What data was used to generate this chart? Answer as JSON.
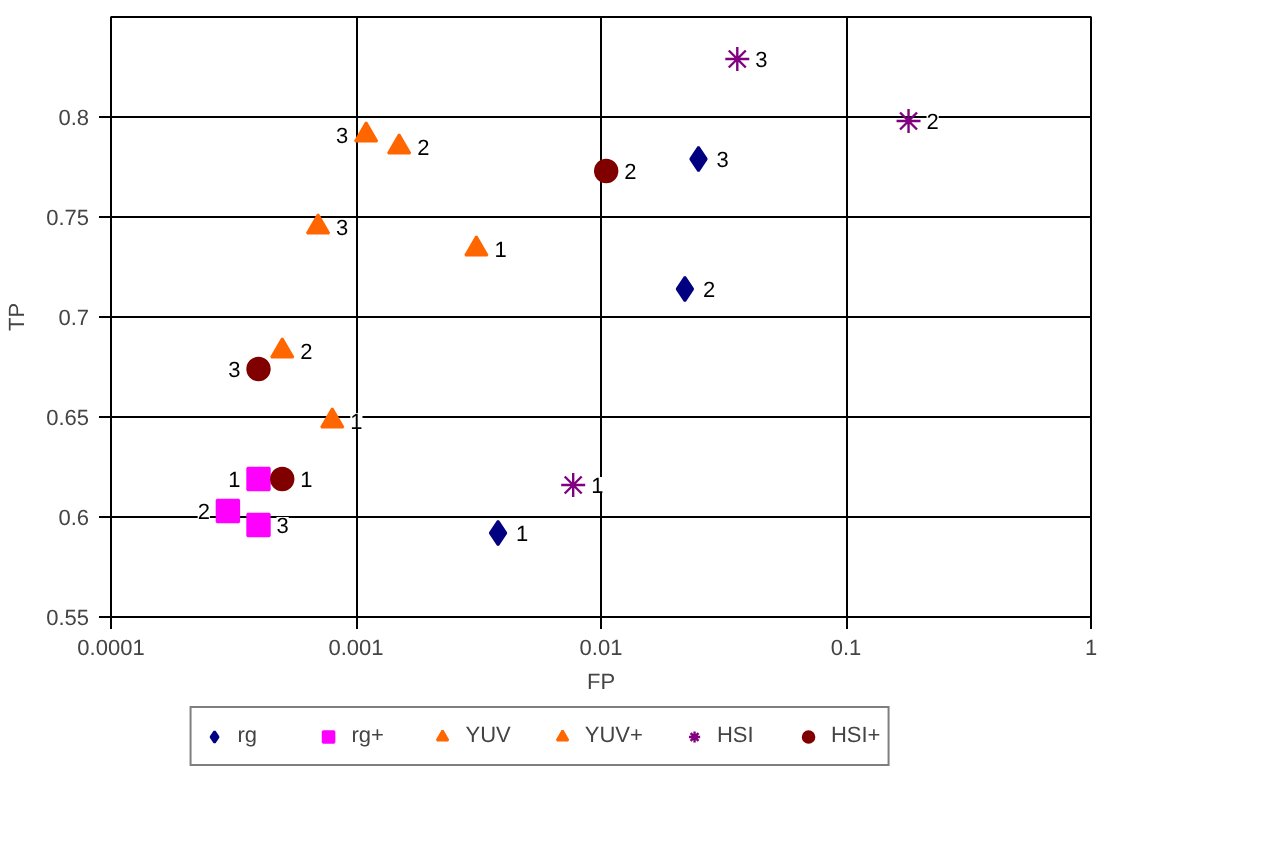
{
  "chart_data": {
    "type": "scatter",
    "xlabel": "FP",
    "ylabel": "TP",
    "log": "x",
    "grid": true,
    "legend": "bottom",
    "xlim": [
      0.0001,
      1
    ],
    "xticks": [
      0.0001,
      0.001,
      0.01,
      0.1,
      1
    ],
    "ylim": [
      0.55,
      0.85
    ],
    "yticks": [
      0.55,
      0.6,
      0.65,
      0.7,
      0.75,
      0.8
    ],
    "series": [
      {
        "name": "rg",
        "color": "#000080",
        "marker": "diamond",
        "x": [
          0.0038,
          0.022,
          0.025
        ],
        "values": [
          0.592,
          0.714,
          0.779
        ]
      },
      {
        "name": "rg+",
        "color": "#ff00ff",
        "marker": "square",
        "x": [
          0.0004,
          0.0003,
          0.0004
        ],
        "values": [
          0.619,
          0.603,
          0.596
        ]
      },
      {
        "name": "YUV",
        "color": "#ff6600",
        "marker": "triangle",
        "x": [
          0.0031,
          0.0015,
          0.0011
        ],
        "values": [
          0.734,
          0.785,
          0.791
        ]
      },
      {
        "name": "YUV+",
        "color": "#ff6600",
        "marker": "triangle",
        "x": [
          0.0008,
          0.0005,
          0.0007
        ],
        "values": [
          0.648,
          0.683,
          0.745
        ]
      },
      {
        "name": "HSI",
        "color": "#800080",
        "marker": "cross",
        "x": [
          0.0077,
          0.18,
          0.036
        ],
        "values": [
          0.616,
          0.798,
          0.829
        ]
      },
      {
        "name": "HSI+",
        "color": "#800000",
        "marker": "circle",
        "x": [
          0.0005,
          0.0105,
          0.0004
        ],
        "values": [
          0.619,
          0.773,
          0.674
        ]
      }
    ],
    "annotations": [
      {
        "text": "1",
        "x": 0.0038,
        "y": 0.592
      },
      {
        "text": "2",
        "x": 0.022,
        "y": 0.714
      },
      {
        "text": "3",
        "x": 0.025,
        "y": 0.779
      },
      {
        "text": "1",
        "x": 0.0004,
        "y": 0.619
      },
      {
        "text": "2",
        "x": 0.0003,
        "y": 0.603
      },
      {
        "text": "3",
        "x": 0.0004,
        "y": 0.596
      },
      {
        "text": "1",
        "x": 0.0031,
        "y": 0.734
      },
      {
        "text": "2",
        "x": 0.0015,
        "y": 0.785
      },
      {
        "text": "3",
        "x": 0.0011,
        "y": 0.791
      },
      {
        "text": "1",
        "x": 0.0008,
        "y": 0.648
      },
      {
        "text": "2",
        "x": 0.0005,
        "y": 0.683
      },
      {
        "text": "3",
        "x": 0.0007,
        "y": 0.745
      },
      {
        "text": "1",
        "x": 0.0077,
        "y": 0.616
      },
      {
        "text": "2",
        "x": 0.18,
        "y": 0.798
      },
      {
        "text": "3",
        "x": 0.036,
        "y": 0.829
      },
      {
        "text": "1",
        "x": 0.0005,
        "y": 0.619
      },
      {
        "text": "2",
        "x": 0.0105,
        "y": 0.773
      },
      {
        "text": "3",
        "x": 0.0004,
        "y": 0.674
      }
    ]
  }
}
